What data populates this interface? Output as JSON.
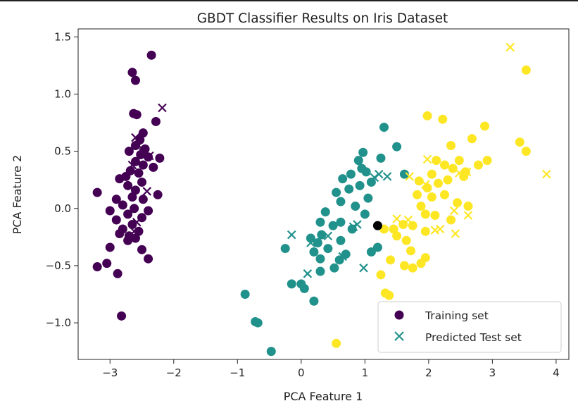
{
  "chart_data": {
    "type": "scatter",
    "title": "GBDT Classifier Results on Iris Dataset",
    "xlabel": "PCA Feature 1",
    "ylabel": "PCA Feature 2",
    "xlim": [
      -3.5,
      4.2
    ],
    "ylim": [
      -1.32,
      1.57
    ],
    "xticks": [
      -3,
      -2,
      -1,
      0,
      1,
      2,
      3,
      4
    ],
    "xtick_labels": [
      "−3",
      "−2",
      "−1",
      "0",
      "1",
      "2",
      "3",
      "4"
    ],
    "yticks": [
      -1.0,
      -0.5,
      0.0,
      0.5,
      1.0,
      1.5
    ],
    "ytick_labels": [
      "−1.0",
      "−0.5",
      "0.0",
      "0.5",
      "1.0",
      "1.5"
    ],
    "grid": false,
    "legend_position": "bottom-right",
    "class_colors": [
      "#440154",
      "#21918c",
      "#fde725"
    ],
    "series": [
      {
        "name": "Training set",
        "marker": "circle",
        "points": [
          [
            -2.35,
            1.34
          ],
          [
            -2.65,
            1.19
          ],
          [
            -2.6,
            1.12
          ],
          [
            -2.63,
            0.83
          ],
          [
            -2.58,
            0.82
          ],
          [
            -2.28,
            0.76
          ],
          [
            -2.48,
            0.66
          ],
          [
            -2.53,
            0.6
          ],
          [
            -2.6,
            0.55
          ],
          [
            -2.45,
            0.52
          ],
          [
            -2.7,
            0.5
          ],
          [
            -2.52,
            0.47
          ],
          [
            -2.4,
            0.45
          ],
          [
            -2.22,
            0.44
          ],
          [
            -2.6,
            0.41
          ],
          [
            -2.48,
            0.38
          ],
          [
            -2.32,
            0.36
          ],
          [
            -2.68,
            0.33
          ],
          [
            -2.55,
            0.31
          ],
          [
            -2.75,
            0.28
          ],
          [
            -2.85,
            0.26
          ],
          [
            -2.5,
            0.23
          ],
          [
            -2.72,
            0.2
          ],
          [
            -2.6,
            0.16
          ],
          [
            -3.2,
            0.14
          ],
          [
            -2.65,
            0.1
          ],
          [
            -2.48,
            0.08
          ],
          [
            -2.9,
            0.08
          ],
          [
            -2.25,
            0.12
          ],
          [
            -2.8,
            0.03
          ],
          [
            -2.62,
            0.0
          ],
          [
            -2.4,
            -0.02
          ],
          [
            -3.0,
            -0.02
          ],
          [
            -2.72,
            -0.05
          ],
          [
            -2.5,
            -0.08
          ],
          [
            -2.9,
            -0.1
          ],
          [
            -2.65,
            -0.14
          ],
          [
            -2.8,
            -0.18
          ],
          [
            -2.55,
            -0.2
          ],
          [
            -2.7,
            -0.24
          ],
          [
            -2.6,
            -0.26
          ],
          [
            -2.85,
            -0.22
          ],
          [
            -2.72,
            -0.28
          ],
          [
            -3.0,
            -0.34
          ],
          [
            -2.5,
            -0.36
          ],
          [
            -2.4,
            -0.44
          ],
          [
            -3.05,
            -0.48
          ],
          [
            -3.2,
            -0.51
          ],
          [
            -2.88,
            -0.57
          ],
          [
            -2.82,
            -0.94
          ],
          [
            1.3,
            0.71
          ],
          [
            1.5,
            0.54
          ],
          [
            0.97,
            0.49
          ],
          [
            1.25,
            0.44
          ],
          [
            0.9,
            0.42
          ],
          [
            0.95,
            0.35
          ],
          [
            1.02,
            0.32
          ],
          [
            0.78,
            0.3
          ],
          [
            1.62,
            0.3
          ],
          [
            0.65,
            0.26
          ],
          [
            1.1,
            0.23
          ],
          [
            0.92,
            0.2
          ],
          [
            0.75,
            0.17
          ],
          [
            0.55,
            0.14
          ],
          [
            1.05,
            0.09
          ],
          [
            0.62,
            0.06
          ],
          [
            0.85,
            0.02
          ],
          [
            0.38,
            -0.03
          ],
          [
            1.0,
            -0.05
          ],
          [
            0.62,
            -0.12
          ],
          [
            0.3,
            -0.12
          ],
          [
            0.5,
            -0.15
          ],
          [
            0.8,
            -0.18
          ],
          [
            0.32,
            -0.23
          ],
          [
            0.15,
            -0.26
          ],
          [
            0.62,
            -0.28
          ],
          [
            0.26,
            -0.3
          ],
          [
            0.42,
            -0.35
          ],
          [
            0.2,
            -0.38
          ],
          [
            0.7,
            -0.4
          ],
          [
            0.3,
            -0.44
          ],
          [
            -0.25,
            -0.35
          ],
          [
            0.6,
            -0.45
          ],
          [
            1.1,
            -0.38
          ],
          [
            0.52,
            -0.52
          ],
          [
            0.3,
            -0.55
          ],
          [
            0.0,
            -0.66
          ],
          [
            -0.15,
            -0.66
          ],
          [
            0.05,
            -0.7
          ],
          [
            0.2,
            -0.81
          ],
          [
            -0.88,
            -0.75
          ],
          [
            -0.72,
            -0.99
          ],
          [
            -0.68,
            -1.0
          ],
          [
            -0.47,
            -1.25
          ],
          [
            1.2,
            -0.34
          ],
          [
            1.98,
            0.81
          ],
          [
            2.22,
            0.78
          ],
          [
            2.88,
            0.72
          ],
          [
            3.53,
            1.21
          ],
          [
            2.68,
            0.61
          ],
          [
            2.35,
            0.55
          ],
          [
            3.43,
            0.58
          ],
          [
            3.53,
            0.5
          ],
          [
            2.12,
            0.42
          ],
          [
            2.25,
            0.38
          ],
          [
            2.48,
            0.42
          ],
          [
            2.38,
            0.35
          ],
          [
            2.58,
            0.32
          ],
          [
            2.78,
            0.38
          ],
          [
            2.92,
            0.42
          ],
          [
            2.05,
            0.3
          ],
          [
            2.3,
            0.25
          ],
          [
            2.55,
            0.28
          ],
          [
            2.15,
            0.22
          ],
          [
            1.85,
            0.24
          ],
          [
            1.98,
            0.18
          ],
          [
            2.25,
            0.12
          ],
          [
            2.05,
            0.1
          ],
          [
            1.82,
            0.12
          ],
          [
            2.45,
            0.05
          ],
          [
            2.62,
            0.02
          ],
          [
            1.88,
            0.02
          ],
          [
            1.95,
            -0.05
          ],
          [
            2.1,
            -0.06
          ],
          [
            2.35,
            -0.1
          ],
          [
            1.75,
            -0.15
          ],
          [
            1.95,
            -0.2
          ],
          [
            1.6,
            -0.14
          ],
          [
            1.45,
            -0.18
          ],
          [
            1.65,
            -0.28
          ],
          [
            1.5,
            -0.24
          ],
          [
            1.72,
            -0.37
          ],
          [
            1.95,
            -0.43
          ],
          [
            1.62,
            -0.5
          ],
          [
            1.75,
            -0.52
          ],
          [
            1.88,
            -0.48
          ],
          [
            1.4,
            -0.45
          ],
          [
            1.32,
            -0.74
          ],
          [
            1.38,
            -0.76
          ],
          [
            1.25,
            -0.58
          ],
          [
            0.55,
            -1.18
          ],
          [
            1.3,
            -0.18
          ],
          [
            1.2,
            -0.15
          ]
        ],
        "classes": [
          0,
          0,
          0,
          0,
          0,
          0,
          0,
          0,
          0,
          0,
          0,
          0,
          0,
          0,
          0,
          0,
          0,
          0,
          0,
          0,
          0,
          0,
          0,
          0,
          0,
          0,
          0,
          0,
          0,
          0,
          0,
          0,
          0,
          0,
          0,
          0,
          0,
          0,
          0,
          0,
          0,
          0,
          0,
          0,
          0,
          0,
          0,
          0,
          0,
          0,
          1,
          1,
          1,
          1,
          1,
          1,
          1,
          1,
          1,
          1,
          1,
          1,
          1,
          1,
          1,
          1,
          1,
          1,
          1,
          1,
          1,
          1,
          1,
          1,
          1,
          1,
          1,
          1,
          1,
          1,
          1,
          1,
          1,
          1,
          1,
          1,
          1,
          1,
          1,
          1,
          1,
          1,
          1,
          1,
          1,
          2,
          2,
          2,
          2,
          2,
          2,
          2,
          2,
          2,
          2,
          2,
          2,
          2,
          2,
          2,
          2,
          2,
          2,
          2,
          2,
          2,
          2,
          2,
          2,
          2,
          2,
          2,
          2,
          2,
          2,
          2,
          2,
          2,
          2,
          2,
          2,
          2,
          2,
          2,
          2,
          2,
          2,
          2,
          2,
          2,
          2,
          2
        ]
      },
      {
        "name": "Predicted Test set",
        "marker": "x",
        "points": [
          [
            -2.18,
            0.88
          ],
          [
            -2.6,
            0.62
          ],
          [
            -2.55,
            0.55
          ],
          [
            -2.48,
            0.49
          ],
          [
            -2.38,
            0.46
          ],
          [
            -2.65,
            0.38
          ],
          [
            -2.42,
            0.15
          ],
          [
            -2.58,
            -0.12
          ],
          [
            -2.62,
            -0.2
          ],
          [
            0.1,
            -0.57
          ],
          [
            0.42,
            -0.24
          ],
          [
            0.82,
            -0.16
          ],
          [
            1.22,
            0.3
          ],
          [
            1.15,
            0.27
          ],
          [
            1.35,
            0.28
          ],
          [
            0.15,
            -0.3
          ],
          [
            -0.15,
            -0.23
          ],
          [
            0.65,
            -0.42
          ],
          [
            0.98,
            -0.52
          ],
          [
            0.88,
            -0.14
          ],
          [
            3.28,
            1.41
          ],
          [
            3.85,
            0.3
          ],
          [
            1.98,
            0.43
          ],
          [
            2.6,
            0.32
          ],
          [
            2.48,
            0.31
          ],
          [
            1.7,
            0.28
          ],
          [
            1.95,
            0.21
          ],
          [
            2.4,
            -0.02
          ],
          [
            2.62,
            -0.06
          ],
          [
            2.18,
            -0.18
          ],
          [
            2.42,
            -0.22
          ],
          [
            1.68,
            -0.1
          ],
          [
            1.5,
            -0.09
          ],
          [
            2.1,
            -0.19
          ]
        ],
        "classes": [
          0,
          0,
          0,
          0,
          0,
          0,
          0,
          0,
          0,
          1,
          1,
          1,
          1,
          1,
          1,
          1,
          1,
          1,
          1,
          1,
          2,
          2,
          2,
          2,
          2,
          2,
          2,
          2,
          2,
          2,
          2,
          2,
          2,
          2
        ]
      }
    ],
    "legend": {
      "training_label": "Training set",
      "test_label": "Predicted Test set",
      "marker_color": "#440154",
      "x_marker_color": "#21918c"
    }
  }
}
